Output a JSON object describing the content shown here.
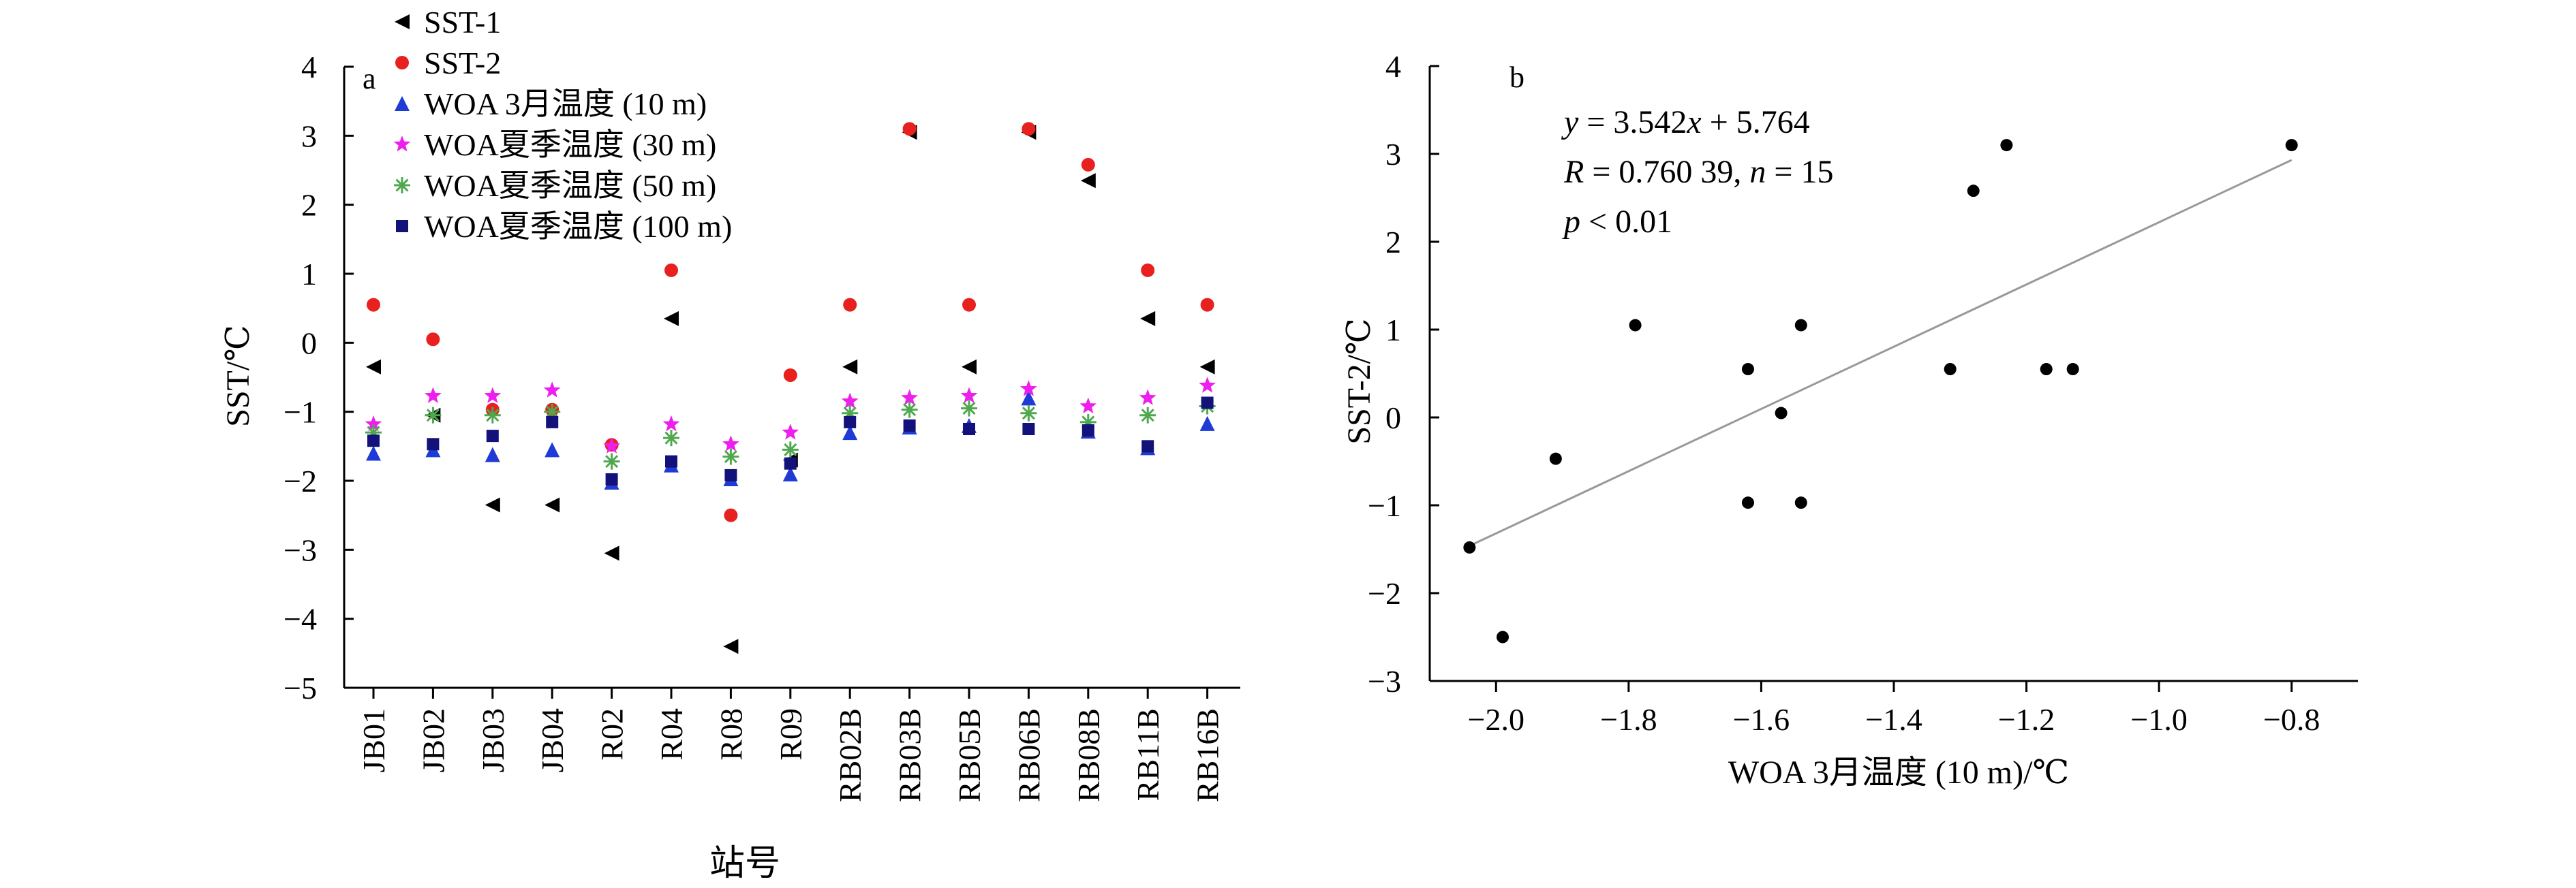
{
  "chart_data": [
    {
      "type": "scatter",
      "panel_label": "a",
      "xlabel": "站号",
      "ylabel": "SST/℃",
      "ylim": [
        -5,
        4
      ],
      "yticks": [
        -5,
        -4,
        -3,
        -2,
        -1,
        0,
        1,
        2,
        3,
        4
      ],
      "categories": [
        "JB01",
        "JB02",
        "JB03",
        "JB04",
        "R02",
        "R04",
        "R08",
        "R09",
        "RB02B",
        "RB03B",
        "RB05B",
        "RB06B",
        "RB08B",
        "RB11B",
        "RB16B"
      ],
      "legend_position": "top-left",
      "series": [
        {
          "name": "SST-1",
          "marker": "triangle-left",
          "color": "#000000",
          "values": [
            -0.35,
            -1.05,
            -2.35,
            -2.35,
            -3.05,
            0.35,
            -4.4,
            -1.7,
            -0.35,
            3.05,
            -0.35,
            3.05,
            2.35,
            0.35,
            -0.35
          ]
        },
        {
          "name": "SST-2",
          "marker": "circle",
          "color": "#e8201e",
          "values": [
            0.55,
            0.05,
            -0.97,
            -0.97,
            -1.48,
            1.05,
            -2.5,
            -0.47,
            0.55,
            3.1,
            0.55,
            3.1,
            2.58,
            1.05,
            0.55
          ]
        },
        {
          "name": "WOA 3月温度 (10 m)",
          "marker": "triangle-up",
          "color": "#1f3bd6",
          "values": [
            -1.6,
            -1.55,
            -1.62,
            -1.55,
            -2.02,
            -1.77,
            -1.97,
            -1.9,
            -1.3,
            -1.22,
            -1.2,
            -0.8,
            -1.28,
            -1.52,
            -1.17
          ]
        },
        {
          "name": "WOA夏季温度 (30 m)",
          "marker": "star",
          "color": "#ee1fee",
          "values": [
            -1.18,
            -0.77,
            -0.77,
            -0.69,
            -1.5,
            -1.18,
            -1.47,
            -1.3,
            -0.85,
            -0.8,
            -0.77,
            -0.67,
            -0.92,
            -0.8,
            -0.62
          ]
        },
        {
          "name": "WOA夏季温度 (50 m)",
          "marker": "asterisk",
          "color": "#4fa84f",
          "values": [
            -1.3,
            -1.05,
            -1.05,
            -1.0,
            -1.72,
            -1.38,
            -1.65,
            -1.55,
            -1.02,
            -0.97,
            -0.95,
            -1.02,
            -1.15,
            -1.05,
            -0.92
          ]
        },
        {
          "name": "WOA夏季温度 (100 m)",
          "marker": "square",
          "color": "#12127a",
          "values": [
            -1.42,
            -1.47,
            -1.35,
            -1.15,
            -1.98,
            -1.72,
            -1.92,
            -1.75,
            -1.15,
            -1.2,
            -1.25,
            -1.25,
            -1.27,
            -1.5,
            -0.87
          ]
        }
      ]
    },
    {
      "type": "scatter",
      "panel_label": "b",
      "xlabel": "WOA 3月温度 (10 m)/℃",
      "ylabel": "SST-2/℃",
      "xlim": [
        -2.1,
        -0.7
      ],
      "ylim": [
        -3,
        4
      ],
      "xticks": [
        -2.0,
        -1.8,
        -1.6,
        -1.4,
        -1.2,
        -1.0,
        -0.8
      ],
      "xticklabels": [
        "−2.0",
        "−1.8",
        "−1.6",
        "−1.4",
        "−1.2",
        "−1.0",
        "−0.8"
      ],
      "yticks": [
        -3,
        -2,
        -1,
        0,
        1,
        2,
        3,
        4
      ],
      "annotation": {
        "equation_y": "y",
        "equation_rest": " = 3.542",
        "equation_x": "x",
        "equation_tail": " + 5.764",
        "r_label": "R",
        "r_value": " = 0.760 39, ",
        "n_label": "n",
        "n_value": " = 15",
        "p_label": "p",
        "p_value": " < 0.01"
      },
      "fit_line": {
        "slope": 3.542,
        "intercept": 5.764,
        "x_range": [
          -2.04,
          -0.8
        ],
        "color": "#999999"
      },
      "points": [
        {
          "x": -2.04,
          "y": -1.48
        },
        {
          "x": -1.99,
          "y": -2.5
        },
        {
          "x": -1.91,
          "y": -0.47
        },
        {
          "x": -1.79,
          "y": 1.05
        },
        {
          "x": -1.62,
          "y": 0.55
        },
        {
          "x": -1.62,
          "y": -0.97
        },
        {
          "x": -1.57,
          "y": 0.05
        },
        {
          "x": -1.54,
          "y": 1.05
        },
        {
          "x": -1.54,
          "y": -0.97
        },
        {
          "x": -1.315,
          "y": 0.55
        },
        {
          "x": -1.28,
          "y": 2.58
        },
        {
          "x": -1.23,
          "y": 3.1
        },
        {
          "x": -1.17,
          "y": 0.55
        },
        {
          "x": -1.13,
          "y": 0.55
        },
        {
          "x": -0.8,
          "y": 3.1
        }
      ]
    }
  ]
}
